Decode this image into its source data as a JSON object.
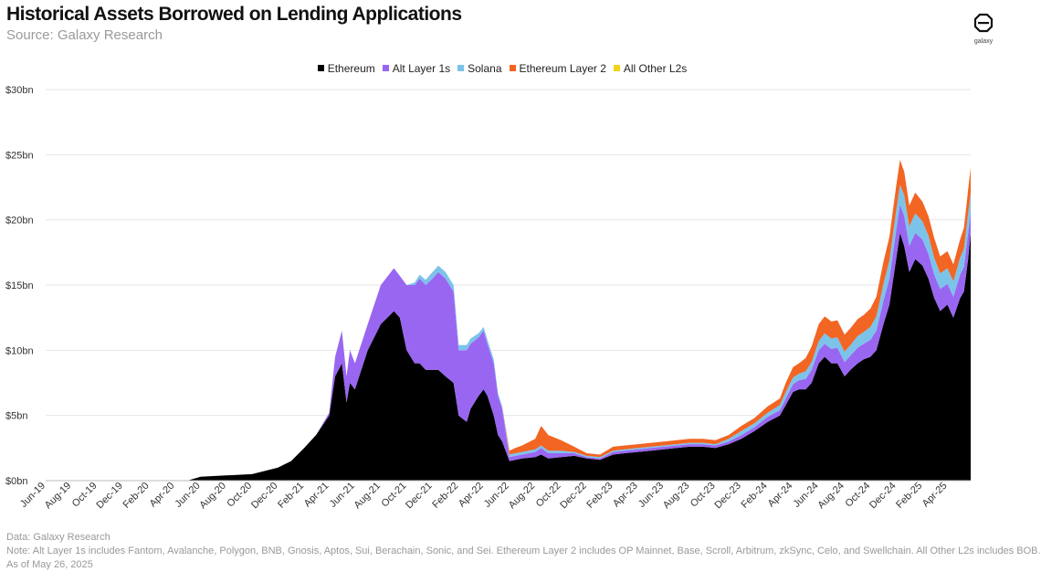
{
  "header": {
    "title": "Historical Assets Borrowed on Lending Applications",
    "subtitle": "Source: Galaxy Research",
    "logo_text": "galaxy"
  },
  "footer": {
    "data_source": "Data: Galaxy Research",
    "note": "Note: Alt Layer 1s includes Fantom, Avalanche, Polygon, BNB, Gnosis, Aptos, Sui, Berachain, Sonic, and Sei. Ethereum Layer 2 includes OP Mainnet, Base, Scroll, Arbitrum, zkSync, Celo, and Swellchain. All Other L2s includes BOB.",
    "as_of": "As of May 26, 2025"
  },
  "chart_data": {
    "type": "area",
    "stacked": true,
    "title": "Historical Assets Borrowed on Lending Applications",
    "subtitle": "Source: Galaxy Research",
    "ylabel": "",
    "xlabel": "",
    "ylim": [
      0,
      30
    ],
    "y_unit": "$bn",
    "y_ticks": [
      0,
      5,
      10,
      15,
      20,
      25,
      30
    ],
    "y_tick_labels": [
      "$0bn",
      "$5bn",
      "$10bn",
      "$15bn",
      "$20bn",
      "$25bn",
      "$30bn"
    ],
    "x_tick_labels": [
      "Jun-19",
      "Aug-19",
      "Oct-19",
      "Dec-19",
      "Feb-20",
      "Apr-20",
      "Jun-20",
      "Aug-20",
      "Oct-20",
      "Dec-20",
      "Feb-21",
      "Apr-21",
      "Jun-21",
      "Aug-21",
      "Oct-21",
      "Dec-21",
      "Feb-22",
      "Apr-22",
      "Jun-22",
      "Aug-22",
      "Oct-22",
      "Dec-22",
      "Feb-23",
      "Apr-23",
      "Jun-23",
      "Aug-23",
      "Oct-23",
      "Dec-23",
      "Feb-24",
      "Apr-24",
      "Jun-24",
      "Aug-24",
      "Oct-24",
      "Dec-24",
      "Feb-25",
      "Apr-25"
    ],
    "x_range": [
      "2019-06",
      "2025-05-26"
    ],
    "legend_position": "top-center",
    "grid": true,
    "series": [
      {
        "name": "Ethereum",
        "color": "#000000"
      },
      {
        "name": "Alt Layer 1s",
        "color": "#9966f2"
      },
      {
        "name": "Solana",
        "color": "#7cc3ea"
      },
      {
        "name": "Ethereum Layer 2",
        "color": "#f26522"
      },
      {
        "name": "All Other L2s",
        "color": "#f2d21b"
      }
    ],
    "x": [
      "2019-06",
      "2020-05",
      "2020-06",
      "2020-08",
      "2020-10",
      "2020-12",
      "2021-01",
      "2021-02",
      "2021-03",
      "2021-04",
      "2021-04-15",
      "2021-05",
      "2021-05-12",
      "2021-05-20",
      "2021-06",
      "2021-07",
      "2021-08",
      "2021-09",
      "2021-09-15",
      "2021-10",
      "2021-10-20",
      "2021-11",
      "2021-11-15",
      "2021-12",
      "2021-12-15",
      "2022-01",
      "2022-01-20",
      "2022-02",
      "2022-02-20",
      "2022-03",
      "2022-03-20",
      "2022-04",
      "2022-04-10",
      "2022-04-25",
      "2022-05-05",
      "2022-05-15",
      "2022-06",
      "2022-06-15",
      "2022-07",
      "2022-08",
      "2022-08-15",
      "2022-09",
      "2022-10",
      "2022-11",
      "2022-12",
      "2023-01",
      "2023-02",
      "2023-03",
      "2023-04",
      "2023-05",
      "2023-06",
      "2023-07",
      "2023-08",
      "2023-09",
      "2023-10",
      "2023-11",
      "2023-12",
      "2024-01",
      "2024-02",
      "2024-03",
      "2024-03-15",
      "2024-04",
      "2024-04-15",
      "2024-05",
      "2024-05-15",
      "2024-06",
      "2024-06-15",
      "2024-07",
      "2024-07-15",
      "2024-08",
      "2024-08-15",
      "2024-09",
      "2024-09-15",
      "2024-10",
      "2024-10-15",
      "2024-11",
      "2024-11-15",
      "2024-12",
      "2024-12-10",
      "2024-12-20",
      "2025-01",
      "2025-01-15",
      "2025-02",
      "2025-02-15",
      "2025-03",
      "2025-03-15",
      "2025-04",
      "2025-04-15",
      "2025-05",
      "2025-05-10",
      "2025-05-20",
      "2025-05-26"
    ],
    "values": {
      "Ethereum": [
        0,
        0,
        0.3,
        0.4,
        0.5,
        1.0,
        1.5,
        2.5,
        3.5,
        5.0,
        8.0,
        9.0,
        6.0,
        7.5,
        7.0,
        10.0,
        12.0,
        13.0,
        12.5,
        10.0,
        9.0,
        9.0,
        8.5,
        8.5,
        8.5,
        8.0,
        7.5,
        5.0,
        4.5,
        5.5,
        6.5,
        7.0,
        6.5,
        5.0,
        3.5,
        3.0,
        1.5,
        1.6,
        1.7,
        1.8,
        2.0,
        1.7,
        1.8,
        1.9,
        1.7,
        1.6,
        2.0,
        2.1,
        2.2,
        2.3,
        2.4,
        2.5,
        2.6,
        2.6,
        2.5,
        2.8,
        3.2,
        3.8,
        4.5,
        5.0,
        5.8,
        6.8,
        7.0,
        7.0,
        7.5,
        9.0,
        9.5,
        9.0,
        9.0,
        8.0,
        8.5,
        9.0,
        9.3,
        9.5,
        10.0,
        12.0,
        13.5,
        17.0,
        19.0,
        18.0,
        16.0,
        17.0,
        16.5,
        15.5,
        14.0,
        13.0,
        13.5,
        12.5,
        14.0,
        14.5,
        17.0,
        19.0
      ],
      "Alt Layer 1s": [
        0,
        0,
        0,
        0,
        0,
        0,
        0,
        0,
        0,
        0.2,
        1.5,
        2.5,
        2.0,
        2.5,
        2.0,
        2.0,
        3.0,
        3.3,
        3.2,
        5.0,
        6.0,
        6.5,
        6.5,
        7.0,
        7.5,
        7.5,
        7.0,
        5.0,
        5.5,
        5.0,
        4.5,
        4.5,
        4.0,
        4.0,
        3.0,
        2.5,
        0.3,
        0.3,
        0.3,
        0.4,
        0.5,
        0.4,
        0.3,
        0.2,
        0.1,
        0.1,
        0.2,
        0.2,
        0.2,
        0.2,
        0.2,
        0.2,
        0.2,
        0.2,
        0.2,
        0.2,
        0.3,
        0.3,
        0.4,
        0.4,
        0.5,
        0.6,
        0.7,
        0.8,
        1.0,
        1.0,
        1.0,
        1.1,
        1.2,
        1.1,
        1.1,
        1.2,
        1.2,
        1.3,
        1.5,
        1.8,
        2.0,
        2.2,
        2.2,
        2.3,
        2.0,
        2.0,
        2.0,
        1.9,
        1.8,
        1.7,
        1.6,
        1.6,
        1.8,
        1.9,
        2.0,
        1.5
      ],
      "Solana": [
        0,
        0,
        0,
        0,
        0,
        0,
        0,
        0,
        0,
        0,
        0,
        0,
        0,
        0,
        0,
        0,
        0,
        0,
        0,
        0,
        0.2,
        0.3,
        0.4,
        0.5,
        0.5,
        0.5,
        0.5,
        0.4,
        0.4,
        0.4,
        0.3,
        0.3,
        0.3,
        0.3,
        0.2,
        0.2,
        0.2,
        0.2,
        0.2,
        0.2,
        0.2,
        0.2,
        0.2,
        0.1,
        0.1,
        0.1,
        0.1,
        0.1,
        0.1,
        0.1,
        0.1,
        0.1,
        0.1,
        0.1,
        0.1,
        0.2,
        0.3,
        0.3,
        0.3,
        0.4,
        0.5,
        0.5,
        0.5,
        0.6,
        0.6,
        0.7,
        0.8,
        0.8,
        0.8,
        0.8,
        0.8,
        0.9,
        0.9,
        1.0,
        1.1,
        1.3,
        1.4,
        1.5,
        1.5,
        1.6,
        1.5,
        1.5,
        1.4,
        1.4,
        1.3,
        1.2,
        1.2,
        1.2,
        1.3,
        1.4,
        1.5,
        1.6
      ],
      "Ethereum Layer 2": [
        0,
        0,
        0,
        0,
        0,
        0,
        0,
        0,
        0,
        0,
        0,
        0,
        0,
        0,
        0,
        0,
        0,
        0,
        0,
        0,
        0,
        0,
        0,
        0,
        0,
        0,
        0,
        0,
        0,
        0,
        0,
        0,
        0,
        0,
        0,
        0,
        0.3,
        0.4,
        0.5,
        0.8,
        1.5,
        1.2,
        0.8,
        0.4,
        0.2,
        0.2,
        0.3,
        0.3,
        0.3,
        0.3,
        0.3,
        0.3,
        0.3,
        0.3,
        0.3,
        0.3,
        0.4,
        0.4,
        0.5,
        0.5,
        0.7,
        0.8,
        0.8,
        1.0,
        1.2,
        1.3,
        1.3,
        1.3,
        1.3,
        1.3,
        1.3,
        1.3,
        1.3,
        1.4,
        1.5,
        1.7,
        1.8,
        1.9,
        1.9,
        1.8,
        1.6,
        1.6,
        1.5,
        1.5,
        1.5,
        1.3,
        1.3,
        1.3,
        1.4,
        1.6,
        1.8,
        1.9
      ],
      "All Other L2s": [
        0,
        0,
        0,
        0,
        0,
        0,
        0,
        0,
        0,
        0,
        0,
        0,
        0,
        0,
        0,
        0,
        0,
        0,
        0,
        0,
        0,
        0,
        0,
        0,
        0,
        0,
        0,
        0,
        0,
        0,
        0,
        0,
        0,
        0,
        0,
        0,
        0,
        0,
        0,
        0,
        0,
        0,
        0,
        0,
        0,
        0,
        0,
        0,
        0,
        0,
        0,
        0,
        0,
        0,
        0,
        0,
        0,
        0,
        0,
        0,
        0,
        0,
        0,
        0,
        0,
        0,
        0,
        0,
        0,
        0,
        0,
        0,
        0,
        0,
        0,
        0,
        0,
        0,
        0,
        0,
        0,
        0,
        0,
        0,
        0,
        0,
        0,
        0,
        0,
        0,
        0.05,
        0.05
      ]
    }
  }
}
